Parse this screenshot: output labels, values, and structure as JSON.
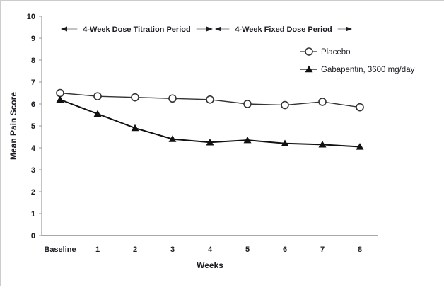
{
  "page": {
    "background": "#ffffff",
    "frame_border_color": "#cccccc"
  },
  "chart_data": {
    "type": "line",
    "title": "",
    "xlabel": "Weeks",
    "ylabel": "Mean Pain Score",
    "categories": [
      "Baseline",
      "1",
      "2",
      "3",
      "4",
      "5",
      "6",
      "7",
      "8"
    ],
    "y_ticks": [
      "0",
      "1",
      "2",
      "3",
      "4",
      "5",
      "6",
      "7",
      "8",
      "9",
      "10"
    ],
    "ylim": [
      0,
      10
    ],
    "grid": false,
    "legend_position": "upper-right-inside",
    "axis_color": "#9b9b9b",
    "arrow_line_color": "#999999",
    "text_color": "#1c1c24",
    "series": [
      {
        "name": "Placebo",
        "marker": "open-circle",
        "line_color": "#333333",
        "marker_fill": "#ffffff",
        "values": [
          6.5,
          6.35,
          6.3,
          6.25,
          6.2,
          6.0,
          5.95,
          6.1,
          5.85
        ]
      },
      {
        "name": "Gabapentin, 3600 mg/day",
        "marker": "filled-triangle",
        "line_color": "#111111",
        "marker_fill": "#111111",
        "values": [
          6.2,
          5.55,
          4.9,
          4.4,
          4.25,
          4.35,
          4.2,
          4.15,
          4.05
        ]
      }
    ],
    "annotations": [
      {
        "label": "4-Week Dose Titration Period",
        "from_category": "Baseline",
        "to_category": "4",
        "style": "double-headed-arrow"
      },
      {
        "label": "4-Week Fixed Dose Period",
        "from_category": "4",
        "to_category": "8",
        "style": "double-headed-arrow"
      }
    ]
  }
}
